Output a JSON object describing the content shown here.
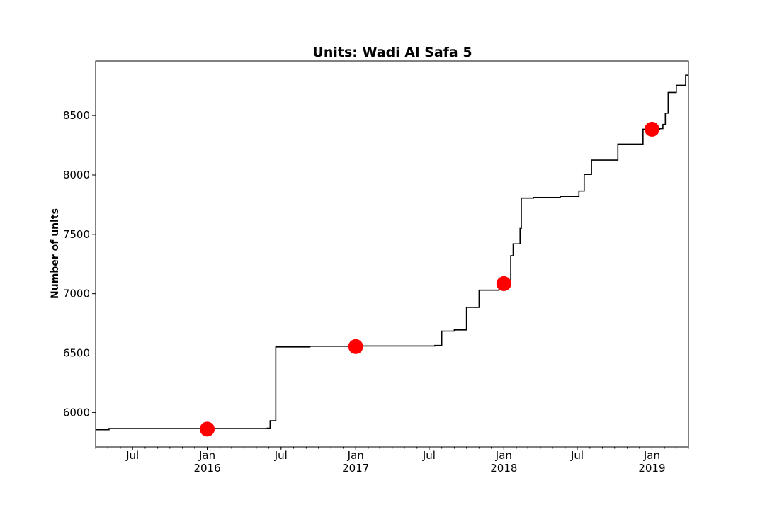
{
  "chart_data": {
    "type": "line",
    "title": "Units: Wadi Al Safa 5",
    "xlabel": "",
    "ylabel": "Number of units",
    "xlim": [
      "2015-04-01",
      "2019-04-01"
    ],
    "ylim": [
      5710,
      8960
    ],
    "grid": false,
    "yticks": [
      6000,
      6500,
      7000,
      7500,
      8000,
      8500
    ],
    "xticks": [
      {
        "date": "2015-07-01",
        "label": "Jul",
        "sublabel": ""
      },
      {
        "date": "2016-01-01",
        "label": "Jan",
        "sublabel": "2016"
      },
      {
        "date": "2016-07-01",
        "label": "Jul",
        "sublabel": ""
      },
      {
        "date": "2017-01-01",
        "label": "Jan",
        "sublabel": "2017"
      },
      {
        "date": "2017-07-01",
        "label": "Jul",
        "sublabel": ""
      },
      {
        "date": "2018-01-01",
        "label": "Jan",
        "sublabel": "2018"
      },
      {
        "date": "2018-07-01",
        "label": "Jul",
        "sublabel": ""
      },
      {
        "date": "2019-01-01",
        "label": "Jan",
        "sublabel": "2019"
      }
    ],
    "series": [
      {
        "style": "step",
        "color": "#000000",
        "points": [
          [
            "2015-04-01",
            5855
          ],
          [
            "2015-05-04",
            5865
          ],
          [
            "2016-05-28",
            5868
          ],
          [
            "2016-06-04",
            5930
          ],
          [
            "2016-06-18",
            6552
          ],
          [
            "2016-09-10",
            6558
          ],
          [
            "2017-01-01",
            6560
          ],
          [
            "2017-07-15",
            6565
          ],
          [
            "2017-08-01",
            6685
          ],
          [
            "2017-09-01",
            6695
          ],
          [
            "2017-10-01",
            6885
          ],
          [
            "2017-11-01",
            7030
          ],
          [
            "2017-12-20",
            7080
          ],
          [
            "2018-01-18",
            7320
          ],
          [
            "2018-01-24",
            7420
          ],
          [
            "2018-02-10",
            7550
          ],
          [
            "2018-02-13",
            7805
          ],
          [
            "2018-03-15",
            7810
          ],
          [
            "2018-05-20",
            7820
          ],
          [
            "2018-07-05",
            7865
          ],
          [
            "2018-07-18",
            8005
          ],
          [
            "2018-08-05",
            8125
          ],
          [
            "2018-10-09",
            8260
          ],
          [
            "2018-12-10",
            8385
          ],
          [
            "2019-01-20",
            8390
          ],
          [
            "2019-01-28",
            8425
          ],
          [
            "2019-02-03",
            8520
          ],
          [
            "2019-02-10",
            8695
          ],
          [
            "2019-03-02",
            8755
          ],
          [
            "2019-03-25",
            8840
          ],
          [
            "2019-04-01",
            8840
          ]
        ]
      }
    ],
    "markers": [
      {
        "date": "2016-01-01",
        "value": 5860,
        "color": "#ff0000"
      },
      {
        "date": "2017-01-01",
        "value": 6555,
        "color": "#ff0000"
      },
      {
        "date": "2018-01-01",
        "value": 7085,
        "color": "#ff0000"
      },
      {
        "date": "2019-01-01",
        "value": 8385,
        "color": "#ff0000"
      }
    ]
  }
}
